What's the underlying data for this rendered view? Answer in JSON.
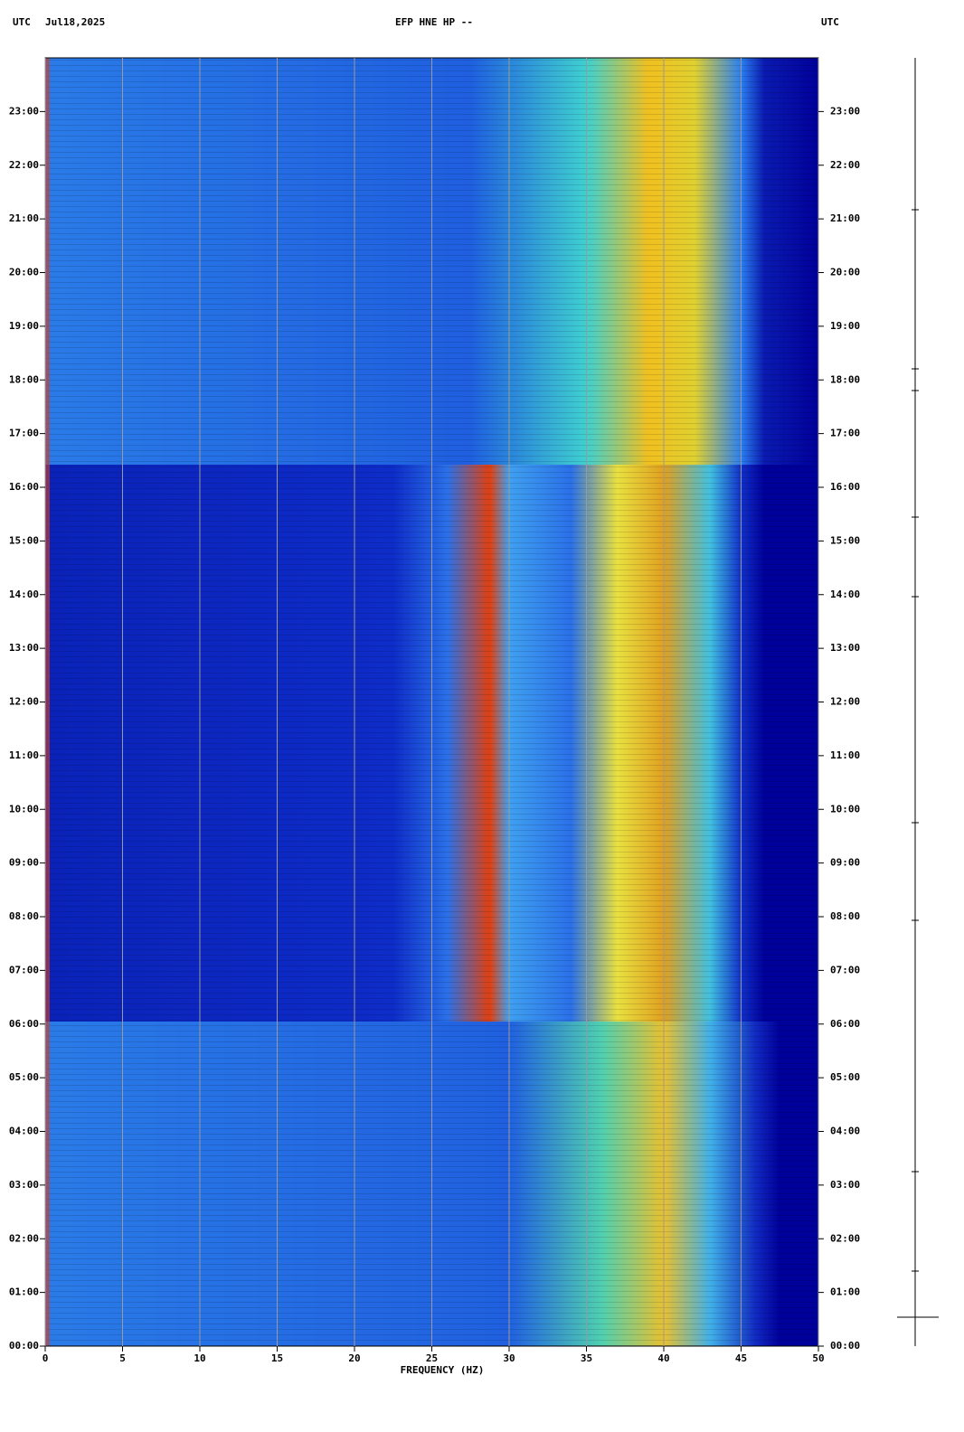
{
  "chart_data": {
    "type": "spectrogram",
    "title": "EFP HNE HP --",
    "date": "Jul18,2025",
    "timezone_left": "UTC",
    "timezone_right": "UTC",
    "xlabel": "FREQUENCY (HZ)",
    "xlim": [
      0,
      50
    ],
    "xticks": [
      0,
      5,
      10,
      15,
      20,
      25,
      30,
      35,
      40,
      45,
      50
    ],
    "ylim": [
      0,
      24
    ],
    "yticks": [
      {
        "value": 0,
        "label": "00:00"
      },
      {
        "value": 1,
        "label": "01:00"
      },
      {
        "value": 2,
        "label": "02:00"
      },
      {
        "value": 3,
        "label": "03:00"
      },
      {
        "value": 4,
        "label": "04:00"
      },
      {
        "value": 5,
        "label": "05:00"
      },
      {
        "value": 6,
        "label": "06:00"
      },
      {
        "value": 7,
        "label": "07:00"
      },
      {
        "value": 8,
        "label": "08:00"
      },
      {
        "value": 9,
        "label": "09:00"
      },
      {
        "value": 10,
        "label": "10:00"
      },
      {
        "value": 11,
        "label": "11:00"
      },
      {
        "value": 12,
        "label": "12:00"
      },
      {
        "value": 13,
        "label": "13:00"
      },
      {
        "value": 14,
        "label": "14:00"
      },
      {
        "value": 15,
        "label": "15:00"
      },
      {
        "value": 16,
        "label": "16:00"
      },
      {
        "value": 17,
        "label": "17:00"
      },
      {
        "value": 18,
        "label": "18:00"
      },
      {
        "value": 19,
        "label": "19:00"
      },
      {
        "value": 20,
        "label": "20:00"
      },
      {
        "value": 21,
        "label": "21:00"
      },
      {
        "value": 22,
        "label": "22:00"
      },
      {
        "value": 23,
        "label": "23:00"
      }
    ],
    "grid": true
  }
}
